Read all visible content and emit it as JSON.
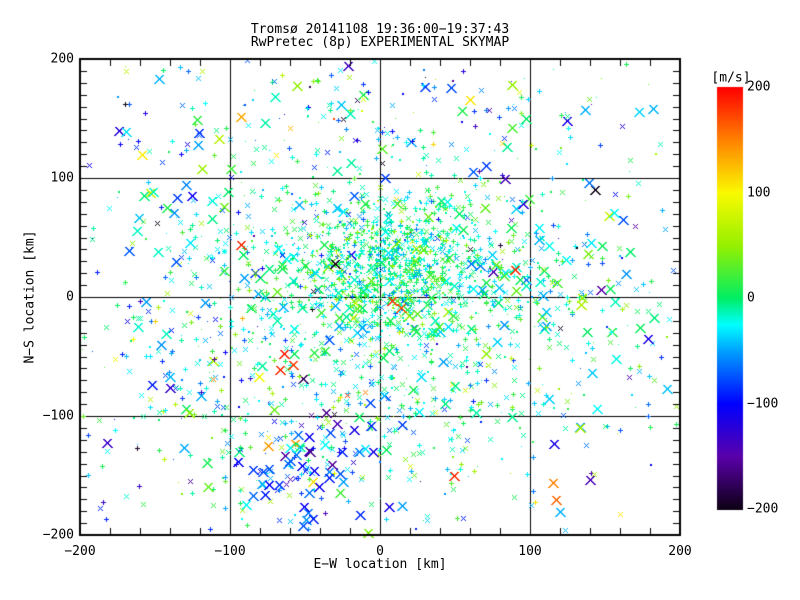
{
  "page": {
    "background": "#ffffff",
    "axis_color": "#000000"
  },
  "chart_data": {
    "type": "scatter",
    "title": "Tromsø 20141108 19:36:00−19:37:43",
    "subtitle": "RwPretec (8p) EXPERIMENTAL SKYMAP",
    "xlabel": "E−W location [km]",
    "ylabel": "N−S location [km]",
    "xlim": [
      -200,
      200
    ],
    "ylim": [
      -200,
      200
    ],
    "grid": true,
    "grid_values": [
      -100,
      0,
      100
    ],
    "x_minor_step_km": 20,
    "y_minor_step_km": 10,
    "x_ticks": [
      {
        "v": -200,
        "label": "−200"
      },
      {
        "v": -100,
        "label": "−100"
      },
      {
        "v": 0,
        "label": "0"
      },
      {
        "v": 100,
        "label": "100"
      },
      {
        "v": 200,
        "label": "200"
      }
    ],
    "y_ticks": [
      {
        "v": 200,
        "label": "200"
      },
      {
        "v": 100,
        "label": "100"
      },
      {
        "v": 0,
        "label": "0"
      },
      {
        "v": -100,
        "label": "−100"
      },
      {
        "v": -200,
        "label": "−200"
      }
    ],
    "colorbar": {
      "label": "[m/s]",
      "min": -200,
      "max": 200,
      "position": "right",
      "ticks": [
        {
          "v": 200,
          "label": "200"
        },
        {
          "v": 100,
          "label": "100"
        },
        {
          "v": 0,
          "label": "0"
        },
        {
          "v": -100,
          "label": "−100"
        },
        {
          "v": -200,
          "label": "−200"
        }
      ],
      "stops": [
        {
          "v": -200,
          "c": "#0d0014"
        },
        {
          "v": -150,
          "c": "#5a00aa"
        },
        {
          "v": -100,
          "c": "#0000ff"
        },
        {
          "v": -50,
          "c": "#00a0ff"
        },
        {
          "v": -25,
          "c": "#00ffff"
        },
        {
          "v": 0,
          "c": "#00ee66"
        },
        {
          "v": 50,
          "c": "#96f000"
        },
        {
          "v": 100,
          "c": "#fafa00"
        },
        {
          "v": 150,
          "c": "#ff8200"
        },
        {
          "v": 200,
          "c": "#ff0000"
        }
      ]
    },
    "points": {
      "total_approx": 2700,
      "marker_types": [
        "dot",
        "plus",
        "x",
        "X"
      ],
      "clusters": [
        {
          "name": "broad-field",
          "dist": "gauss",
          "n": 650,
          "center": [
            -10,
            -15
          ],
          "sigma": [
            95,
            80
          ],
          "v_mean": -12,
          "v_sigma": 38,
          "mix": {
            "dot": 0.2,
            "plus": 0.35,
            "x": 0.3,
            "X": 0.15
          }
        },
        {
          "name": "uniform-sparse",
          "dist": "uniform",
          "n": 260,
          "extent": [
            -195,
            195
          ],
          "sigma": [
            0,
            0
          ],
          "v_mean": -30,
          "v_sigma": 70,
          "mix": {
            "dot": 0.25,
            "plus": 0.3,
            "x": 0.25,
            "X": 0.2
          }
        },
        {
          "name": "left-band",
          "dist": "gauss",
          "n": 70,
          "center": [
            -140,
            -65
          ],
          "sigma": [
            32,
            52
          ],
          "v_mean": -40,
          "v_sigma": 55,
          "mix": {
            "dot": 0.15,
            "plus": 0.35,
            "x": 0.3,
            "X": 0.2
          }
        },
        {
          "name": "upper-left-sparse",
          "dist": "gauss",
          "n": 55,
          "center": [
            -110,
            105
          ],
          "sigma": [
            50,
            45
          ],
          "v_mean": -20,
          "v_sigma": 45,
          "mix": {
            "dot": 0.25,
            "plus": 0.35,
            "x": 0.25,
            "X": 0.15
          }
        },
        {
          "name": "top-band",
          "dist": "gauss",
          "n": 65,
          "center": [
            15,
            150
          ],
          "sigma": [
            85,
            32
          ],
          "v_mean": -50,
          "v_sigma": 55,
          "mix": {
            "dot": 0.3,
            "plus": 0.4,
            "x": 0.2,
            "X": 0.1
          }
        },
        {
          "name": "right-field",
          "dist": "gauss",
          "n": 110,
          "center": [
            115,
            5
          ],
          "sigma": [
            48,
            65
          ],
          "v_mean": -8,
          "v_sigma": 35,
          "mix": {
            "dot": 0.2,
            "plus": 0.3,
            "x": 0.3,
            "X": 0.2
          }
        },
        {
          "name": "bottom-mid",
          "dist": "gauss",
          "n": 90,
          "center": [
            -10,
            -120
          ],
          "sigma": [
            55,
            40
          ],
          "v_mean": -15,
          "v_sigma": 40,
          "mix": {
            "dot": 0.2,
            "plus": 0.3,
            "x": 0.3,
            "X": 0.2
          }
        },
        {
          "name": "bottom-left-blue",
          "dist": "gauss",
          "n": 80,
          "center": [
            -52,
            -148
          ],
          "sigma": [
            24,
            30
          ],
          "v_mean": -95,
          "v_sigma": 38,
          "mix": {
            "dot": 0.05,
            "plus": 0.15,
            "x": 0.25,
            "X": 0.55
          }
        },
        {
          "name": "inner-halo",
          "dist": "gauss",
          "n": 600,
          "center": [
            5,
            8
          ],
          "sigma": [
            58,
            52
          ],
          "v_mean": -5,
          "v_sigma": 30,
          "mix": {
            "dot": 0.3,
            "plus": 0.35,
            "x": 0.25,
            "X": 0.1
          }
        },
        {
          "name": "dense-core",
          "dist": "gauss",
          "n": 700,
          "center": [
            10,
            28
          ],
          "sigma": [
            30,
            25
          ],
          "v_mean": -5,
          "v_sigma": 26,
          "mix": {
            "dot": 0.55,
            "plus": 0.25,
            "x": 0.15,
            "X": 0.05
          }
        }
      ],
      "features": [
        {
          "x": -64,
          "y": -48,
          "v": 190,
          "marker": "X"
        },
        {
          "x": -58,
          "y": -57,
          "v": 178,
          "marker": "X"
        },
        {
          "x": -67,
          "y": -61,
          "v": 185,
          "marker": "X"
        },
        {
          "x": -93,
          "y": 44,
          "v": 185,
          "marker": "X"
        },
        {
          "x": 8,
          "y": -3,
          "v": 180,
          "marker": "X"
        },
        {
          "x": 14,
          "y": -9,
          "v": 168,
          "marker": "X"
        },
        {
          "x": -22,
          "y": -82,
          "v": 178,
          "marker": "x"
        },
        {
          "x": -10,
          "y": -80,
          "v": 150,
          "marker": "x"
        },
        {
          "x": 49,
          "y": -150,
          "v": 185,
          "marker": "X"
        },
        {
          "x": 115,
          "y": -156,
          "v": 150,
          "marker": "X"
        },
        {
          "x": 117,
          "y": -171,
          "v": 160,
          "marker": "X"
        },
        {
          "x": 103,
          "y": -172,
          "v": 110,
          "marker": "plus"
        },
        {
          "x": -75,
          "y": -125,
          "v": 140,
          "marker": "X"
        },
        {
          "x": -31,
          "y": -98,
          "v": -195,
          "marker": "x"
        },
        {
          "x": -32,
          "y": -141,
          "v": -155,
          "marker": "X"
        },
        {
          "x": -149,
          "y": 62,
          "v": -200,
          "marker": "x"
        },
        {
          "x": 120,
          "y": -26,
          "v": -195,
          "marker": "x"
        },
        {
          "x": 147,
          "y": 6,
          "v": -150,
          "marker": "X"
        },
        {
          "x": 30,
          "y": 185,
          "v": -190,
          "marker": "dot"
        },
        {
          "x": -25,
          "y": 150,
          "v": -195,
          "marker": "x"
        },
        {
          "x": 55,
          "y": 190,
          "v": -120,
          "marker": "plus"
        },
        {
          "x": 133,
          "y": -110,
          "v": 60,
          "marker": "X"
        },
        {
          "x": -150,
          "y": -20,
          "v": 120,
          "marker": "plus"
        },
        {
          "x": -165,
          "y": -35,
          "v": 95,
          "marker": "plus"
        },
        {
          "x": 170,
          "y": 60,
          "v": -150,
          "marker": "x"
        },
        {
          "x": -30,
          "y": 28,
          "v": -200,
          "marker": "X"
        },
        {
          "x": -45,
          "y": 5,
          "v": -190,
          "marker": "x"
        },
        {
          "x": 60,
          "y": 40,
          "v": -195,
          "marker": "x"
        },
        {
          "x": 20,
          "y": 55,
          "v": 200,
          "marker": "dot"
        },
        {
          "x": 35,
          "y": 48,
          "v": -150,
          "marker": "dot"
        },
        {
          "x": 90,
          "y": 23,
          "v": 185,
          "marker": "X"
        }
      ]
    }
  }
}
